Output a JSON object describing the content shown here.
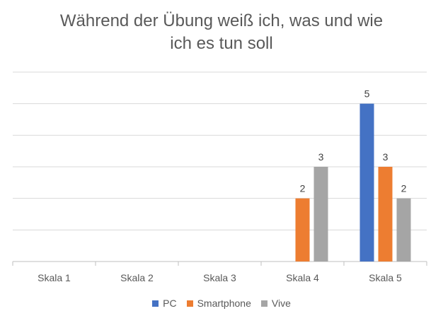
{
  "chart_data": {
    "type": "bar",
    "title": "Während der Übung weiß ich, was und wie ich es tun soll",
    "title_lines": [
      "Während der Übung weiß ich, was und wie",
      "ich es tun soll"
    ],
    "categories": [
      "Skala 1",
      "Skala 2",
      "Skala 3",
      "Skala 4",
      "Skala 5"
    ],
    "series": [
      {
        "name": "PC",
        "color": "#4472C4",
        "values": [
          0,
          0,
          0,
          0,
          5
        ]
      },
      {
        "name": "Smartphone",
        "color": "#ED7D31",
        "values": [
          0,
          0,
          0,
          2,
          3
        ]
      },
      {
        "name": "Vive",
        "color": "#A5A5A5",
        "values": [
          0,
          0,
          0,
          3,
          2
        ]
      }
    ],
    "ylim": [
      0,
      6
    ],
    "grid": true,
    "legend_position": "bottom",
    "show_data_labels": true,
    "xlabel": "",
    "ylabel": ""
  }
}
